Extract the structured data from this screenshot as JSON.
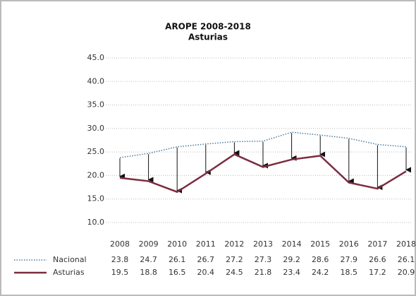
{
  "chart_data": {
    "type": "line",
    "title": "AROPE 2008-2018",
    "subtitle": "Asturias",
    "categories": [
      "2008",
      "2009",
      "2010",
      "2011",
      "2012",
      "2013",
      "2014",
      "2015",
      "2016",
      "2017",
      "2018"
    ],
    "series": [
      {
        "name": "Nacional",
        "color": "#4a7a9c",
        "values": [
          23.8,
          24.7,
          26.1,
          26.7,
          27.2,
          27.3,
          29.2,
          28.6,
          27.9,
          26.6,
          26.1
        ]
      },
      {
        "name": "Asturias",
        "color": "#7b2d40",
        "values": [
          19.5,
          18.8,
          16.5,
          20.4,
          24.5,
          21.8,
          23.4,
          24.2,
          18.5,
          17.2,
          20.9
        ]
      }
    ],
    "ylim": [
      10,
      45
    ],
    "yticks": [
      {
        "value": 10,
        "label": "10.0"
      },
      {
        "value": 15,
        "label": "15.0"
      },
      {
        "value": 20,
        "label": "20.0"
      },
      {
        "value": 25,
        "label": "25.0"
      },
      {
        "value": 30,
        "label": "30.0"
      },
      {
        "value": 35,
        "label": "35.0"
      },
      {
        "value": 40,
        "label": "40.0"
      },
      {
        "value": 45,
        "label": "45.0"
      }
    ],
    "grid": true
  }
}
